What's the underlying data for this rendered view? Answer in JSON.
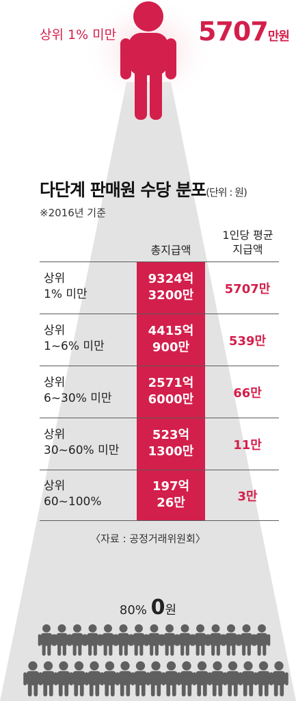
{
  "top": {
    "label": "상위 1% 미만",
    "amount": "5707",
    "unit": "만원"
  },
  "title": {
    "main": "다단계 판매원 수당 분포",
    "unit": "(단위 : 원)",
    "note": "※2016년 기준"
  },
  "columns": {
    "total": "총지급액",
    "avg_line1": "1인당 평균",
    "avg_line2": "지급액"
  },
  "rows": [
    {
      "label1": "상위",
      "label2": "1% 미만",
      "total1": "9324억",
      "total2": "3200만",
      "avg": "5707만"
    },
    {
      "label1": "상위",
      "label2": "1~6% 미만",
      "total1": "4415억",
      "total2": "900만",
      "avg": "539만"
    },
    {
      "label1": "상위",
      "label2": "6~30% 미만",
      "total1": "2571억",
      "total2": "6000만",
      "avg": "66만"
    },
    {
      "label1": "상위",
      "label2": "30~60% 미만",
      "total1": "523억",
      "total2": "1300만",
      "avg": "11만"
    },
    {
      "label1": "상위",
      "label2": "60~100%",
      "total1": "197억",
      "total2": "26만",
      "avg": "3만"
    }
  ],
  "source": "〈자료 : 공정거래위원회〉",
  "bottom": {
    "percent": "80%",
    "zero": "0",
    "won": "원"
  },
  "colors": {
    "accent": "#d31f4b",
    "beam": "#e3e3e3",
    "crowd": "#5f5f5f"
  }
}
